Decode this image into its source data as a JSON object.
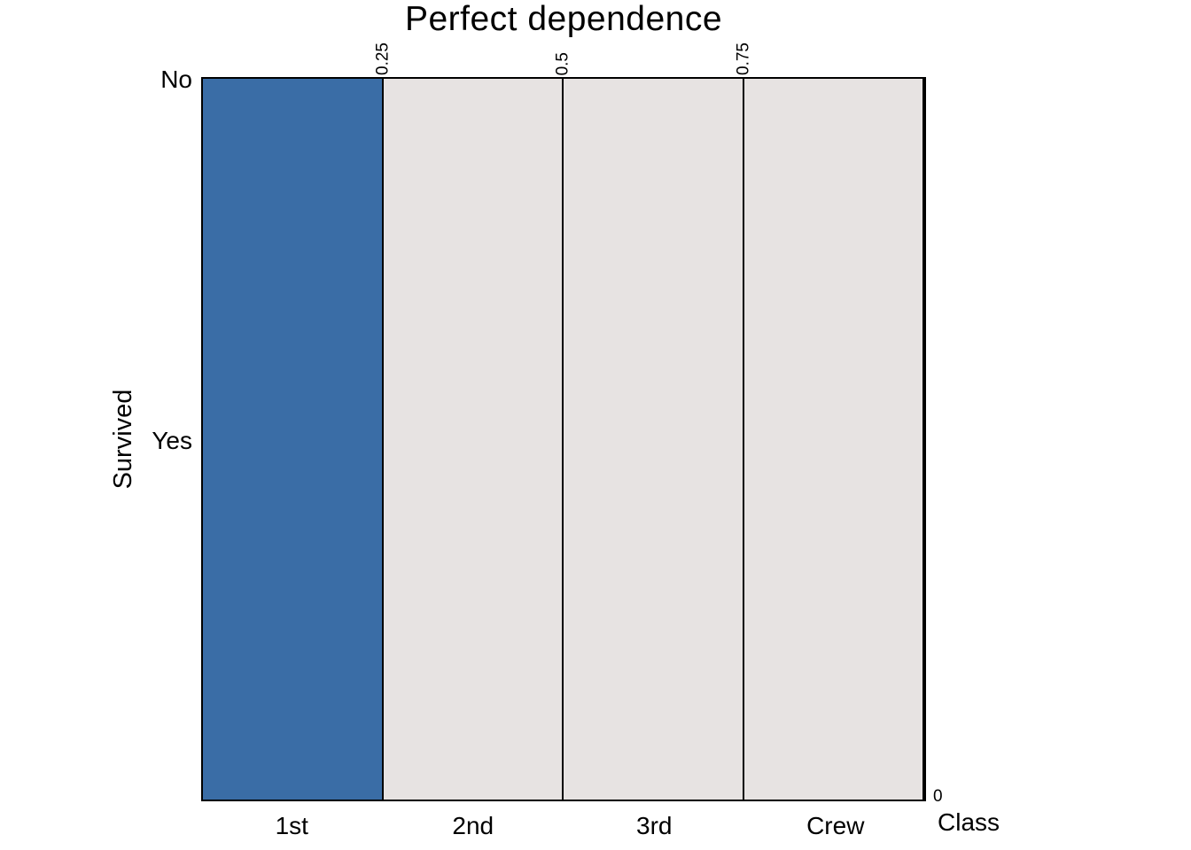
{
  "chart_data": {
    "type": "mosaic",
    "title": "Perfect dependence",
    "xlabel": "Class",
    "ylabel": "Survived",
    "x_categories": [
      "1st",
      "2nd",
      "3rd",
      "Crew"
    ],
    "y_categories": [
      "No",
      "Yes"
    ],
    "top_axis_tick_labels": [
      "0.25",
      "0.5",
      "0.75"
    ],
    "top_axis_tick_positions": [
      0.25,
      0.5,
      0.75
    ],
    "right_axis_tick_label": "0",
    "column_widths": [
      0.25,
      0.25,
      0.25,
      0.25
    ],
    "cells": [
      {
        "x": "1st",
        "x_start": 0.0,
        "x_end": 0.25,
        "height": 1.0,
        "fill": "#3A6DA6",
        "highlighted": true
      },
      {
        "x": "2nd",
        "x_start": 0.25,
        "x_end": 0.5,
        "height": 1.0,
        "fill": "#E7E3E2",
        "highlighted": false
      },
      {
        "x": "3rd",
        "x_start": 0.5,
        "x_end": 0.75,
        "height": 1.0,
        "fill": "#E7E3E2",
        "highlighted": false
      },
      {
        "x": "Crew",
        "x_start": 0.75,
        "x_end": 1.0,
        "height": 1.0,
        "fill": "#E7E3E2",
        "highlighted": false
      }
    ],
    "colors": {
      "highlight_fill": "#3A6DA6",
      "base_fill": "#E7E3E2",
      "border": "#000000",
      "text": "#000000",
      "background": "#FFFFFF"
    },
    "legend": "none",
    "grid": false
  }
}
